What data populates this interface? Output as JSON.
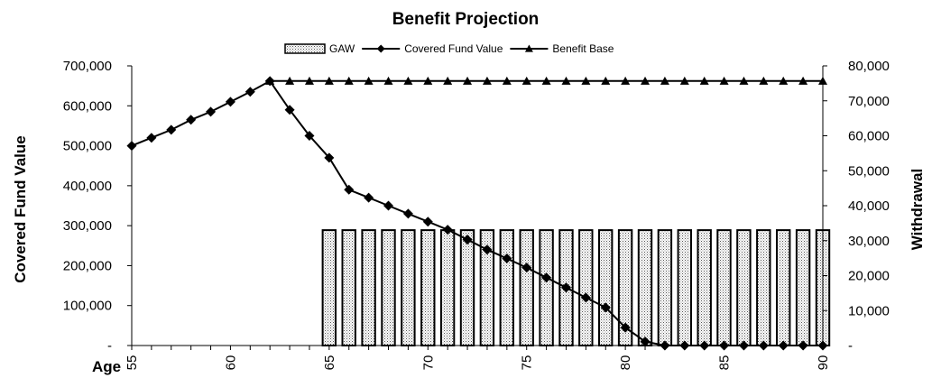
{
  "chart_data": {
    "type": "bar+line",
    "title": "Benefit Projection",
    "x": [
      55,
      56,
      57,
      58,
      59,
      60,
      61,
      62,
      63,
      64,
      65,
      66,
      67,
      68,
      69,
      70,
      71,
      72,
      73,
      74,
      75,
      76,
      77,
      78,
      79,
      80,
      81,
      82,
      83,
      84,
      85,
      86,
      87,
      88,
      89,
      90
    ],
    "x_ticks": [
      "55",
      "60",
      "65",
      "70",
      "75",
      "80",
      "85",
      "90"
    ],
    "xlabel": "Age",
    "ylabel_left": "Covered Fund Value",
    "ylabel_right": "Withdrawal",
    "y_left": {
      "min": 0,
      "max": 700000,
      "ticks": [
        {
          "value": 0,
          "label": "-"
        },
        {
          "value": 100000,
          "label": "100,000"
        },
        {
          "value": 200000,
          "label": "200,000"
        },
        {
          "value": 300000,
          "label": "300,000"
        },
        {
          "value": 400000,
          "label": "400,000"
        },
        {
          "value": 500000,
          "label": "500,000"
        },
        {
          "value": 600000,
          "label": "600,000"
        },
        {
          "value": 700000,
          "label": "700,000"
        }
      ]
    },
    "y_right": {
      "min": 0,
      "max": 80000,
      "ticks": [
        {
          "value": 0,
          "label": "-"
        },
        {
          "value": 10000,
          "label": "10,000"
        },
        {
          "value": 20000,
          "label": "20,000"
        },
        {
          "value": 30000,
          "label": "30,000"
        },
        {
          "value": 40000,
          "label": "40,000"
        },
        {
          "value": 50000,
          "label": "50,000"
        },
        {
          "value": 60000,
          "label": "60,000"
        },
        {
          "value": 70000,
          "label": "70,000"
        },
        {
          "value": 80000,
          "label": "80,000"
        }
      ]
    },
    "legend": {
      "position": "top-center",
      "items": [
        {
          "label": "GAW",
          "style": "bar"
        },
        {
          "label": "Covered Fund Value",
          "style": "line-diamond"
        },
        {
          "label": "Benefit Base",
          "style": "line-triangle"
        }
      ]
    },
    "series": [
      {
        "name": "GAW",
        "type": "bar",
        "axis": "right",
        "x": [
          65,
          66,
          67,
          68,
          69,
          70,
          71,
          72,
          73,
          74,
          75,
          76,
          77,
          78,
          79,
          80,
          81,
          82,
          83,
          84,
          85,
          86,
          87,
          88,
          89,
          90
        ],
        "values": [
          33000,
          33000,
          33000,
          33000,
          33000,
          33000,
          33000,
          33000,
          33000,
          33000,
          33000,
          33000,
          33000,
          33000,
          33000,
          33000,
          33000,
          33000,
          33000,
          33000,
          33000,
          33000,
          33000,
          33000,
          33000,
          33000
        ]
      },
      {
        "name": "Covered Fund Value",
        "type": "line",
        "marker": "diamond",
        "axis": "left",
        "x": [
          55,
          56,
          57,
          58,
          59,
          60,
          61,
          62,
          63,
          64,
          65,
          66,
          67,
          68,
          69,
          70,
          71,
          72,
          73,
          74,
          75,
          76,
          77,
          78,
          79,
          80,
          81,
          82,
          83,
          84,
          85,
          86,
          87,
          88,
          89,
          90
        ],
        "values": [
          500000,
          520000,
          540000,
          565000,
          585000,
          610000,
          635000,
          662000,
          590000,
          525000,
          470000,
          390000,
          370000,
          350000,
          330000,
          310000,
          290000,
          265000,
          240000,
          218000,
          195000,
          170000,
          145000,
          120000,
          95000,
          45000,
          10000,
          0,
          0,
          0,
          0,
          0,
          0,
          0,
          0,
          0
        ]
      },
      {
        "name": "Benefit Base",
        "type": "line",
        "marker": "triangle",
        "axis": "left",
        "x": [
          62,
          63,
          64,
          65,
          66,
          67,
          68,
          69,
          70,
          71,
          72,
          73,
          74,
          75,
          76,
          77,
          78,
          79,
          80,
          81,
          82,
          83,
          84,
          85,
          86,
          87,
          88,
          89,
          90
        ],
        "values": [
          662000,
          662000,
          662000,
          662000,
          662000,
          662000,
          662000,
          662000,
          662000,
          662000,
          662000,
          662000,
          662000,
          662000,
          662000,
          662000,
          662000,
          662000,
          662000,
          662000,
          662000,
          662000,
          662000,
          662000,
          662000,
          662000,
          662000,
          662000,
          662000
        ]
      }
    ]
  }
}
